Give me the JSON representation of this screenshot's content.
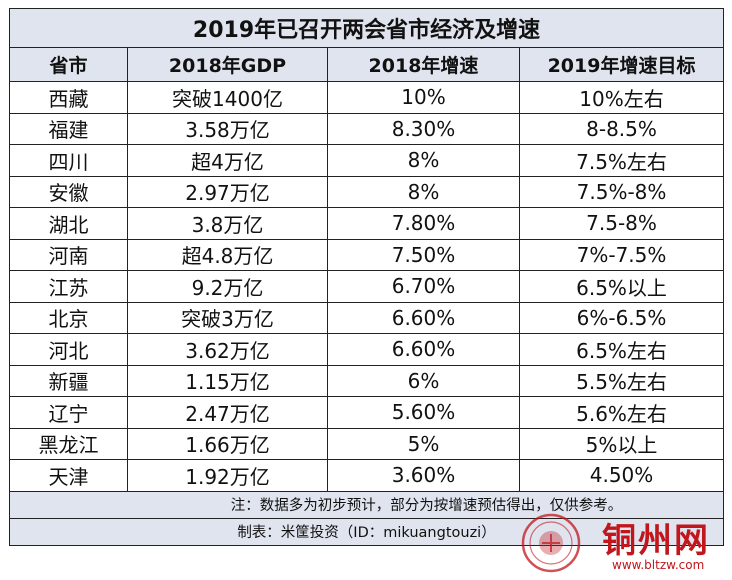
{
  "table": {
    "title": "2019年已召开两会省市经济及增速",
    "headers": [
      "省市",
      "2018年GDP",
      "2018年增速",
      "2019年增速目标"
    ],
    "rows": [
      [
        "西藏",
        "突破1400亿",
        "10%",
        "10%左右"
      ],
      [
        "福建",
        "3.58万亿",
        "8.30%",
        "8-8.5%"
      ],
      [
        "四川",
        "超4万亿",
        "8%",
        "7.5%左右"
      ],
      [
        "安徽",
        "2.97万亿",
        "8%",
        "7.5%-8%"
      ],
      [
        "湖北",
        "3.8万亿",
        "7.80%",
        "7.5-8%"
      ],
      [
        "河南",
        "超4.8万亿",
        "7.50%",
        "7%-7.5%"
      ],
      [
        "江苏",
        "9.2万亿",
        "6.70%",
        "6.5%以上"
      ],
      [
        "北京",
        "突破3万亿",
        "6.60%",
        "6%-6.5%"
      ],
      [
        "河北",
        "3.62万亿",
        "6.60%",
        "6.5%左右"
      ],
      [
        "新疆",
        "1.15万亿",
        "6%",
        "5.5%左右"
      ],
      [
        "辽宁",
        "2.47万亿",
        "5.60%",
        "5.6%左右"
      ],
      [
        "黑龙江",
        "1.66万亿",
        "5%",
        "5%以上"
      ],
      [
        "天津",
        "1.92万亿",
        "3.60%",
        "4.50%"
      ]
    ],
    "note": "注：数据多为初步预计，部分为按增速预估得出，仅供参考。",
    "credit": "制表：米筐投资（ID：mikuangtouzi）"
  },
  "watermark": {
    "text": "铜州网",
    "url": "www.bltzw.com",
    "color": "#c1161c"
  }
}
